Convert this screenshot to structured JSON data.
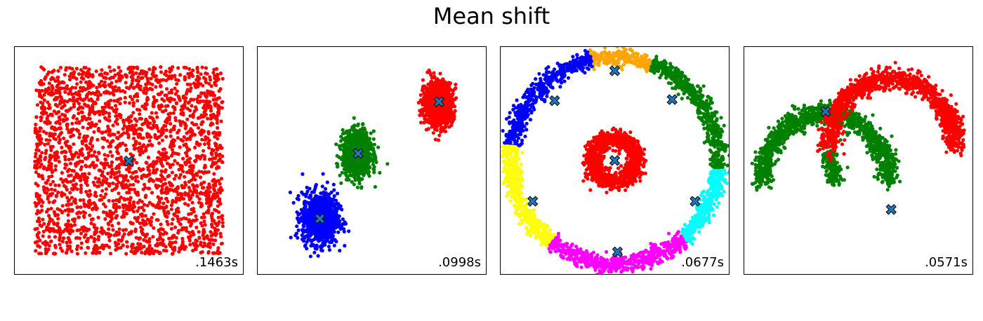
{
  "figure": {
    "title": "Mean shift"
  },
  "colors": {
    "red": "#ff0000",
    "green": "#008000",
    "blue": "#0000ff",
    "orange": "#ffa500",
    "yellow": "#ffff00",
    "magenta": "#ff00ff",
    "cyan": "#00ffff",
    "center": "#1f77b4"
  },
  "chart_data": [
    {
      "type": "scatter",
      "title": "",
      "xlim": [
        -2.1,
        2.1
      ],
      "ylim": [
        -2.1,
        2.1
      ],
      "timing_label": ".1463s",
      "series": [
        {
          "color": "red",
          "shape": "square",
          "x_range": [
            -1.72,
            1.72
          ],
          "y_range": [
            -1.72,
            1.72
          ],
          "n": 2500
        }
      ],
      "centers": [
        {
          "x": 0.0,
          "y": -0.01
        }
      ]
    },
    {
      "type": "scatter",
      "title": "",
      "xlim": [
        -2.1,
        2.1
      ],
      "ylim": [
        -2.1,
        2.1
      ],
      "timing_label": ".0998s",
      "series": [
        {
          "color": "blue",
          "shape": "blob",
          "cx": -0.95,
          "cy": -1.07,
          "sx": 0.16,
          "sy": 0.23,
          "n": 1100
        },
        {
          "color": "green",
          "shape": "blob",
          "cx": -0.27,
          "cy": 0.12,
          "sx": 0.13,
          "sy": 0.2,
          "n": 1100
        },
        {
          "color": "red",
          "shape": "blob",
          "cx": 1.21,
          "cy": 1.05,
          "sx": 0.13,
          "sy": 0.2,
          "n": 1100
        }
      ],
      "centers": [
        {
          "x": -0.95,
          "y": -1.07
        },
        {
          "x": -0.25,
          "y": 0.13
        },
        {
          "x": 1.23,
          "y": 1.08
        }
      ]
    },
    {
      "type": "scatter",
      "title": "",
      "xlim": [
        -2.1,
        2.1
      ],
      "ylim": [
        -2.1,
        2.1
      ],
      "timing_label": ".0677s",
      "series": [
        {
          "color": "red",
          "shape": "ring",
          "r": 0.4,
          "rs": 0.08,
          "a0": 0,
          "a1": 360,
          "n": 1200
        },
        {
          "color": "orange",
          "shape": "ring",
          "r": 1.9,
          "rs": 0.08,
          "a0": 69,
          "a1": 103,
          "n": 280
        },
        {
          "color": "blue",
          "shape": "ring",
          "r": 1.9,
          "rs": 0.08,
          "a0": 103,
          "a1": 172,
          "n": 520
        },
        {
          "color": "yellow",
          "shape": "ring",
          "r": 1.9,
          "rs": 0.08,
          "a0": 172,
          "a1": 232,
          "n": 450
        },
        {
          "color": "magenta",
          "shape": "ring",
          "r": 1.9,
          "rs": 0.08,
          "a0": 232,
          "a1": 312,
          "n": 600
        },
        {
          "color": "cyan",
          "shape": "ring",
          "r": 1.9,
          "rs": 0.08,
          "a0": 312,
          "a1": 356,
          "n": 330
        },
        {
          "color": "green",
          "shape": "ring",
          "r": 1.9,
          "rs": 0.08,
          "a0": 356,
          "a1": 429,
          "n": 550
        }
      ],
      "centers": [
        {
          "x": 0.0,
          "y": 0.0
        },
        {
          "x": 0.0,
          "y": 1.65
        },
        {
          "x": -1.1,
          "y": 1.1
        },
        {
          "x": 1.05,
          "y": 1.12
        },
        {
          "x": -1.5,
          "y": -0.75
        },
        {
          "x": 1.47,
          "y": -0.75
        },
        {
          "x": 0.05,
          "y": -1.68
        }
      ]
    },
    {
      "type": "scatter",
      "title": "",
      "xlim": [
        -2.1,
        2.1
      ],
      "ylim": [
        -2.1,
        2.1
      ],
      "timing_label": ".0571s",
      "series": [
        {
          "color": "green",
          "shape": "arc",
          "cx": -0.6,
          "cy": -0.04,
          "rx": 1.15,
          "ry": 1.6,
          "a0": 0,
          "a1": 180,
          "noise": 0.09,
          "n": 1250
        },
        {
          "color": "green",
          "shape": "arc",
          "cx": 0.6,
          "cy": -0.04,
          "rx": 1.15,
          "ry": 1.6,
          "a0": 150,
          "a1": 175,
          "noise": 0.07,
          "n": 150,
          "flip": true
        },
        {
          "color": "red",
          "shape": "arc",
          "cx": 0.6,
          "cy": -0.04,
          "rx": 1.15,
          "ry": 1.6,
          "a0": 175,
          "a1": 360,
          "noise": 0.09,
          "n": 1100,
          "flip": true
        },
        {
          "color": "red",
          "shape": "arc",
          "cx": 0.6,
          "cy": -0.04,
          "rx": 1.15,
          "ry": 1.6,
          "a0": 0,
          "a1": 35,
          "noise": 0.08,
          "n": 150,
          "flip": true
        }
      ],
      "centers": [
        {
          "x": -0.6,
          "y": 0.9
        },
        {
          "x": 0.6,
          "y": -0.9
        }
      ]
    }
  ]
}
